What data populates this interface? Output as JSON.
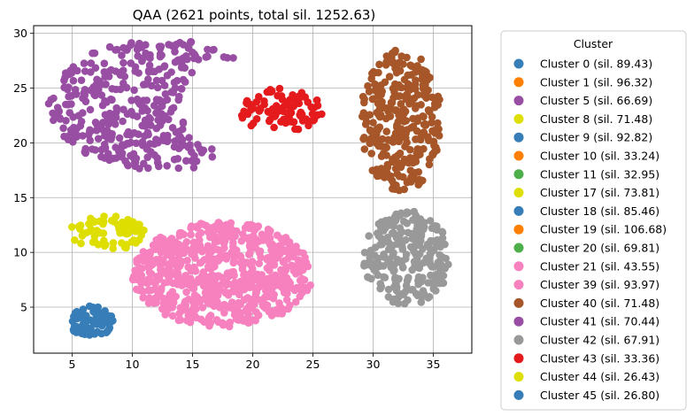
{
  "chart_data": {
    "type": "scatter",
    "title": "QAA (2621 points, total sil. 1252.63)",
    "xlabel": "",
    "ylabel": "",
    "xlim": [
      1.8,
      38.2
    ],
    "ylim": [
      0.8,
      30.7
    ],
    "xticks": [
      5,
      10,
      15,
      20,
      25,
      30,
      35
    ],
    "yticks": [
      5,
      10,
      15,
      20,
      25,
      30
    ],
    "grid": true,
    "legend": {
      "title": "Cluster",
      "placement": "outside-right",
      "entries": [
        {
          "label": "Cluster 0 (sil. 89.43)",
          "color": "#377eb8"
        },
        {
          "label": "Cluster 1 (sil. 96.32)",
          "color": "#ff7f00"
        },
        {
          "label": "Cluster 5 (sil. 66.69)",
          "color": "#984ea3"
        },
        {
          "label": "Cluster 8 (sil. 71.48)",
          "color": "#dede00"
        },
        {
          "label": "Cluster 9 (sil. 92.82)",
          "color": "#377eb8"
        },
        {
          "label": "Cluster 10 (sil. 33.24)",
          "color": "#ff7f00"
        },
        {
          "label": "Cluster 11 (sil. 32.95)",
          "color": "#4daf4a"
        },
        {
          "label": "Cluster 17 (sil. 73.81)",
          "color": "#dede00"
        },
        {
          "label": "Cluster 18 (sil. 85.46)",
          "color": "#377eb8"
        },
        {
          "label": "Cluster 19 (sil. 106.68)",
          "color": "#ff7f00"
        },
        {
          "label": "Cluster 20 (sil. 69.81)",
          "color": "#4daf4a"
        },
        {
          "label": "Cluster 21 (sil. 43.55)",
          "color": "#f781bf"
        },
        {
          "label": "Cluster 39 (sil. 93.97)",
          "color": "#f781bf"
        },
        {
          "label": "Cluster 40 (sil. 71.48)",
          "color": "#a65628"
        },
        {
          "label": "Cluster 41 (sil. 70.44)",
          "color": "#984ea3"
        },
        {
          "label": "Cluster 42 (sil. 67.91)",
          "color": "#999999"
        },
        {
          "label": "Cluster 43 (sil. 33.36)",
          "color": "#e41a1c"
        },
        {
          "label": "Cluster 44 (sil. 26.43)",
          "color": "#dede00"
        },
        {
          "label": "Cluster 45 (sil. 26.80)",
          "color": "#377eb8"
        }
      ]
    },
    "blobs": [
      {
        "shape": "crescent",
        "color": "#984ea3",
        "cx": 12.5,
        "cy": 23.5,
        "rx": 9.5,
        "ry": 6.0,
        "n": 380
      },
      {
        "shape": "ellipse",
        "color": "#e41a1c",
        "cx": 22.3,
        "cy": 23.0,
        "rx": 3.6,
        "ry": 2.0,
        "n": 90
      },
      {
        "shape": "ellipse",
        "color": "#a65628",
        "cx": 32.3,
        "cy": 22.0,
        "rx": 3.4,
        "ry": 6.5,
        "n": 300
      },
      {
        "shape": "ellipse",
        "color": "#dede00",
        "cx": 8.0,
        "cy": 11.8,
        "rx": 3.2,
        "ry": 1.6,
        "n": 70
      },
      {
        "shape": "ellipse",
        "color": "#f781bf",
        "cx": 17.5,
        "cy": 8.0,
        "rx": 7.5,
        "ry": 4.8,
        "n": 650
      },
      {
        "shape": "ellipse",
        "color": "#999999",
        "cx": 32.8,
        "cy": 9.5,
        "rx": 3.6,
        "ry": 4.3,
        "n": 250
      },
      {
        "shape": "ellipse",
        "color": "#377eb8",
        "cx": 6.6,
        "cy": 3.7,
        "rx": 1.9,
        "ry": 1.4,
        "n": 90
      }
    ]
  }
}
